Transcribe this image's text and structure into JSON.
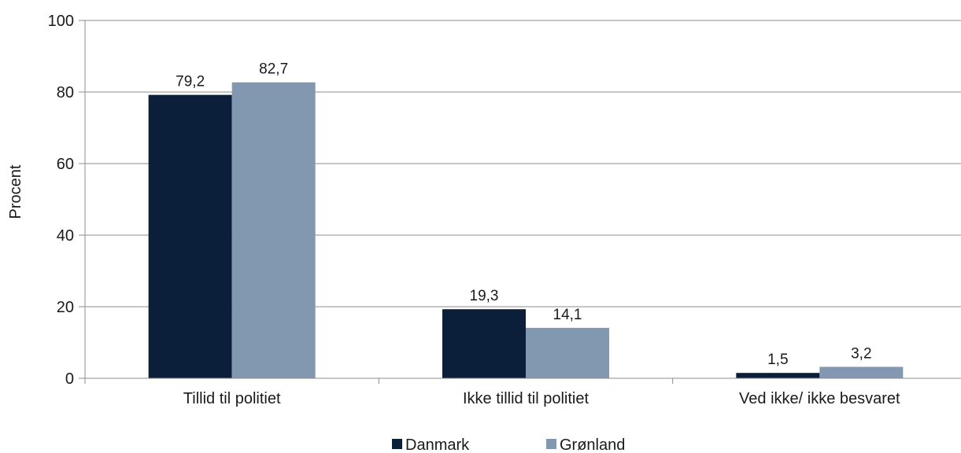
{
  "chart_data": {
    "type": "bar",
    "title": "",
    "xlabel": "",
    "ylabel": "Procent",
    "ylim": [
      0,
      100
    ],
    "yticks": [
      0,
      20,
      40,
      60,
      80,
      100
    ],
    "grid": true,
    "legend_position": "bottom",
    "categories": [
      "Tillid til politiet",
      "Ikke tillid til politiet",
      "Ved ikke/ ikke besvaret"
    ],
    "series": [
      {
        "name": "Danmark",
        "color": "#0b1f3a",
        "values": [
          79.2,
          19.3,
          1.5
        ],
        "labels": [
          "79,2",
          "19,3",
          "1,5"
        ]
      },
      {
        "name": "Grønland",
        "color": "#8297b0",
        "values": [
          82.7,
          14.1,
          3.2
        ],
        "labels": [
          "82,7",
          "14,1",
          "3,2"
        ]
      }
    ]
  }
}
